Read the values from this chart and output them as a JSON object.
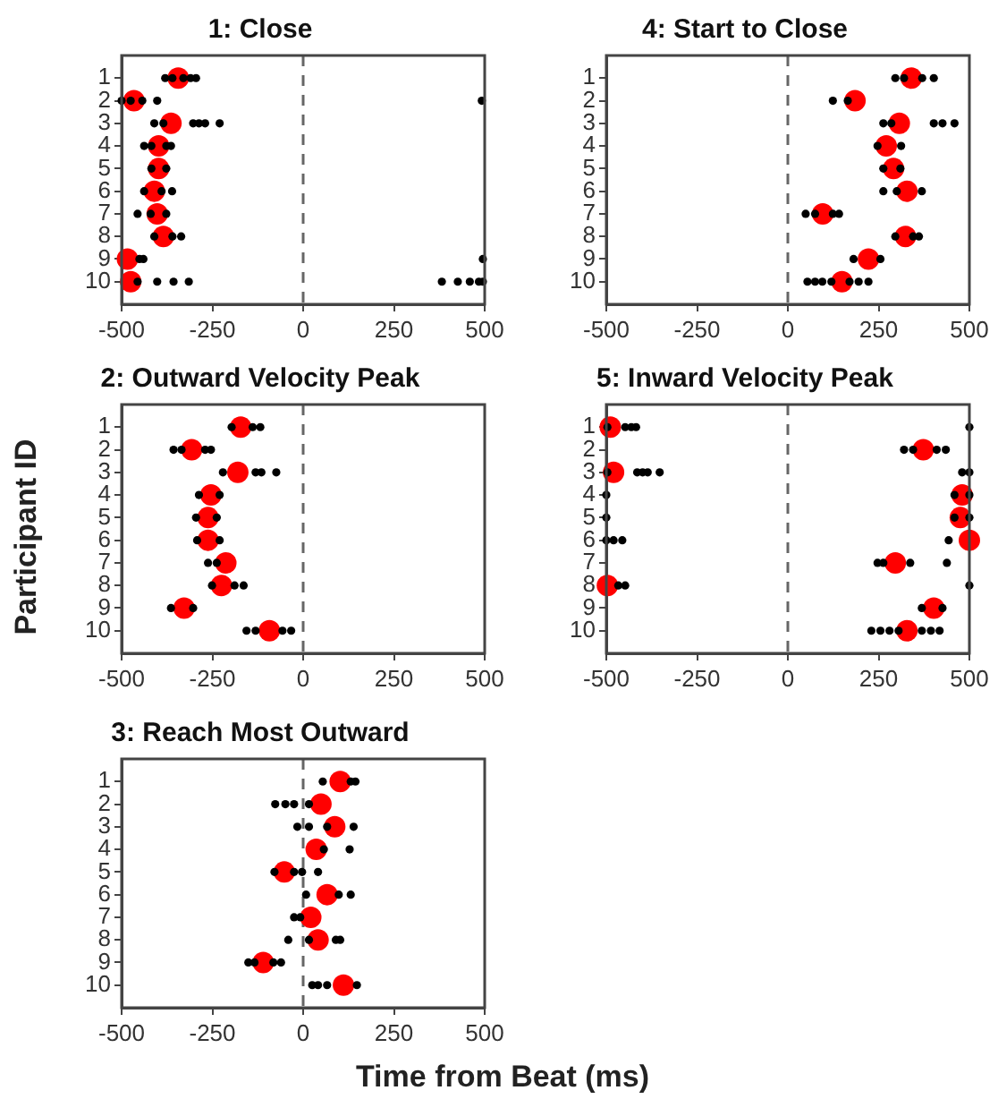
{
  "chart_data": [
    {
      "type": "scatter",
      "title": "1: Close",
      "xlim": [
        -500,
        500
      ],
      "xticks": [
        -500,
        -250,
        0,
        250,
        500
      ],
      "ylim": [
        11,
        0
      ],
      "yticks": [
        1,
        2,
        3,
        4,
        5,
        6,
        7,
        8,
        9,
        10
      ],
      "grid": false,
      "marker": "circle",
      "ref_lines": [
        {
          "axis": "x",
          "value": 0,
          "color": "#666666",
          "line_style": "dashed"
        }
      ],
      "series": [
        {
          "color": "#000000",
          "x": [
            -380,
            -360,
            -330,
            -310,
            -295,
            -500,
            -475,
            -443,
            -402,
            492,
            -410,
            -385,
            -303,
            -287,
            -270,
            -230,
            -438,
            -418,
            -377,
            -364,
            -418,
            -377,
            -438,
            -390,
            -361,
            -456,
            -420,
            -377,
            -410,
            -360,
            -336,
            -451,
            -440,
            495,
            -456,
            -402,
            -357,
            -315,
            382,
            426,
            459,
            484,
            495
          ],
          "values": [
            1,
            1,
            1,
            1,
            1,
            2,
            2,
            2,
            2,
            2,
            3,
            3,
            3,
            3,
            3,
            3,
            4,
            4,
            4,
            4,
            5,
            5,
            6,
            6,
            6,
            7,
            7,
            7,
            8,
            8,
            8,
            9,
            9,
            9,
            10,
            10,
            10,
            10,
            10,
            10,
            10,
            10,
            10
          ]
        },
        {
          "color": "#ff0000",
          "x": [
            -344,
            -466,
            -364,
            -398,
            -398,
            -410,
            -402,
            -385,
            -484,
            -475
          ],
          "values": [
            1,
            2,
            3,
            4,
            5,
            6,
            7,
            8,
            9,
            10
          ]
        }
      ]
    },
    {
      "type": "scatter",
      "title": "4: Start to Close",
      "xlim": [
        -500,
        500
      ],
      "xticks": [
        -500,
        -250,
        0,
        250,
        500
      ],
      "ylim": [
        11,
        0
      ],
      "yticks": [
        1,
        2,
        3,
        4,
        5,
        6,
        7,
        8,
        9,
        10
      ],
      "grid": false,
      "marker": "circle",
      "ref_lines": [
        {
          "axis": "x",
          "value": 0,
          "color": "#666666",
          "line_style": "dashed"
        }
      ],
      "series": [
        {
          "color": "#000000",
          "x": [
            296,
            320,
            370,
            402,
            124,
            165,
            263,
            285,
            402,
            426,
            459,
            247,
            312,
            263,
            310,
            263,
            300,
            369,
            49,
            75,
            124,
            141,
            296,
            345,
            361,
            181,
            255,
            54,
            75,
            95,
            120,
            170,
            195,
            222
          ],
          "values": [
            1,
            1,
            1,
            1,
            2,
            2,
            3,
            3,
            3,
            3,
            3,
            4,
            4,
            5,
            5,
            6,
            6,
            6,
            7,
            7,
            7,
            7,
            8,
            8,
            8,
            9,
            9,
            10,
            10,
            10,
            10,
            10,
            10,
            10
          ]
        },
        {
          "color": "#ff0000",
          "x": [
            340,
            185,
            307,
            271,
            291,
            328,
            96,
            324,
            222,
            149
          ],
          "values": [
            1,
            2,
            3,
            4,
            5,
            6,
            7,
            8,
            9,
            10
          ]
        }
      ]
    },
    {
      "type": "scatter",
      "title": "2: Outward Velocity Peak",
      "ylabel": "Participant ID",
      "xlim": [
        -500,
        500
      ],
      "xticks": [
        -500,
        -250,
        0,
        250,
        500
      ],
      "ylim": [
        11,
        0
      ],
      "yticks": [
        1,
        2,
        3,
        4,
        5,
        6,
        7,
        8,
        9,
        10
      ],
      "grid": false,
      "marker": "circle",
      "ref_lines": [
        {
          "axis": "x",
          "value": 0,
          "color": "#666666",
          "line_style": "dashed"
        }
      ],
      "series": [
        {
          "color": "#000000",
          "x": [
            -197,
            -139,
            -118,
            -357,
            -335,
            -270,
            -254,
            -221,
            -131,
            -115,
            -74,
            -287,
            -230,
            -295,
            -238,
            -292,
            -230,
            -262,
            -238,
            -251,
            -189,
            -164,
            -364,
            -303,
            -156,
            -131,
            -57,
            -33
          ],
          "values": [
            1,
            1,
            1,
            2,
            2,
            2,
            2,
            3,
            3,
            3,
            3,
            4,
            4,
            5,
            5,
            6,
            6,
            7,
            7,
            8,
            8,
            8,
            9,
            9,
            10,
            10,
            10,
            10
          ]
        },
        {
          "color": "#ff0000",
          "x": [
            -172,
            -307,
            -180,
            -254,
            -262,
            -262,
            -213,
            -225,
            -328,
            -93
          ],
          "values": [
            1,
            2,
            3,
            4,
            5,
            6,
            7,
            8,
            9,
            10
          ]
        }
      ]
    },
    {
      "type": "scatter",
      "title": "5: Inward Velocity Peak",
      "xlim": [
        -500,
        500
      ],
      "xticks": [
        -500,
        -250,
        0,
        250,
        500
      ],
      "ylim": [
        11,
        0
      ],
      "yticks": [
        1,
        2,
        3,
        4,
        5,
        6,
        7,
        8,
        9,
        10
      ],
      "grid": false,
      "marker": "circle",
      "ref_lines": [
        {
          "axis": "x",
          "value": 0,
          "color": "#666666",
          "line_style": "dashed"
        }
      ],
      "series": [
        {
          "color": "#000000",
          "x": [
            -497,
            -448,
            -431,
            -418,
            500,
            320,
            345,
            410,
            435,
            -497,
            -415,
            -400,
            -386,
            -353,
            480,
            500,
            -500,
            459,
            500,
            -500,
            459,
            500,
            -500,
            -480,
            -456,
            443,
            247,
            263,
            337,
            438,
            -467,
            -448,
            500,
            369,
            426,
            230,
            255,
            280,
            305,
            369,
            394,
            418
          ],
          "values": [
            1,
            1,
            1,
            1,
            1,
            2,
            2,
            2,
            2,
            3,
            3,
            3,
            3,
            3,
            3,
            3,
            4,
            4,
            4,
            5,
            5,
            5,
            6,
            6,
            6,
            6,
            7,
            7,
            7,
            7,
            8,
            8,
            8,
            9,
            9,
            10,
            10,
            10,
            10,
            10,
            10,
            10
          ]
        },
        {
          "color": "#ff0000",
          "x": [
            -489,
            373,
            -480,
            480,
            475,
            500,
            296,
            -497,
            402,
            328
          ],
          "values": [
            1,
            2,
            3,
            4,
            5,
            6,
            7,
            8,
            9,
            10
          ]
        }
      ]
    },
    {
      "type": "scatter",
      "title": "3: Reach Most Outward",
      "xlabel": "Time from Beat (ms)",
      "xlim": [
        -500,
        500
      ],
      "xticks": [
        -500,
        -250,
        0,
        250,
        500
      ],
      "ylim": [
        11,
        0
      ],
      "yticks": [
        1,
        2,
        3,
        4,
        5,
        6,
        7,
        8,
        9,
        10
      ],
      "grid": false,
      "marker": "circle",
      "ref_lines": [
        {
          "axis": "x",
          "value": 0,
          "color": "#666666",
          "line_style": "dashed"
        }
      ],
      "series": [
        {
          "color": "#000000",
          "x": [
            54,
            131,
            144,
            -77,
            -49,
            -25,
            16,
            -16,
            16,
            66,
            139,
            57,
            128,
            -79,
            -25,
            -3,
            41,
            8,
            98,
            131,
            -25,
            -8,
            -41,
            16,
            90,
            102,
            -151,
            -134,
            -82,
            -61,
            25,
            41,
            66,
            148
          ],
          "values": [
            1,
            1,
            1,
            2,
            2,
            2,
            2,
            3,
            3,
            3,
            3,
            4,
            4,
            5,
            5,
            5,
            5,
            6,
            6,
            6,
            7,
            7,
            8,
            8,
            8,
            8,
            9,
            9,
            9,
            9,
            10,
            10,
            10,
            10
          ]
        },
        {
          "color": "#ff0000",
          "x": [
            102,
            49,
            87,
            36,
            -52,
            66,
            21,
            41,
            -110,
            111
          ],
          "values": [
            1,
            2,
            3,
            4,
            5,
            6,
            7,
            8,
            9,
            10
          ]
        }
      ]
    }
  ]
}
